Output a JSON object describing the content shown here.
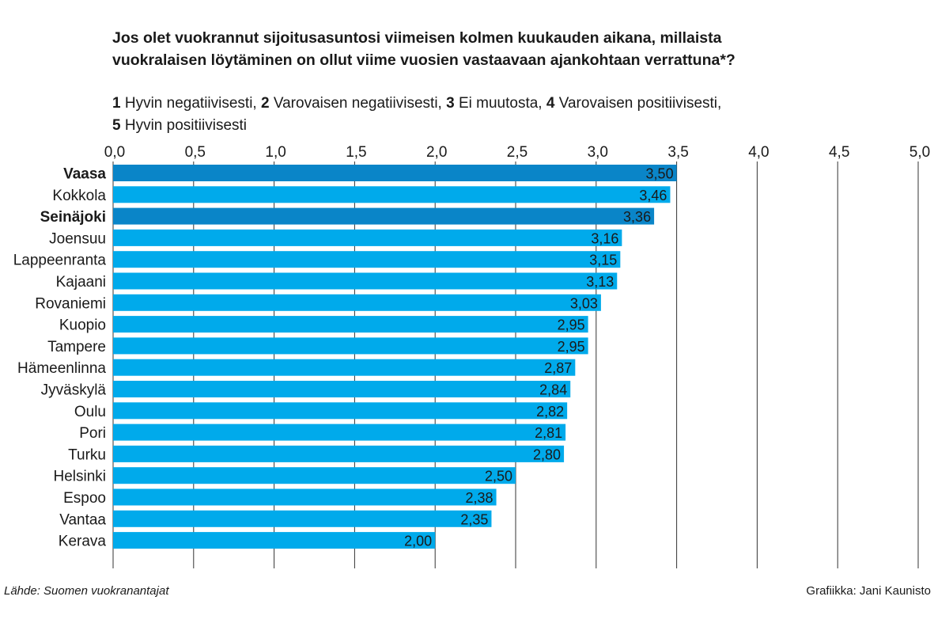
{
  "title_line1": "Jos olet vuokrannut sijoitusasuntosi viimeisen kolmen kuukauden aikana, millaista",
  "title_line2": "vuokralaisen löytäminen on ollut viime vuosien vastaavaan ajankohtaan verrattuna*?",
  "legend": [
    {
      "num": "1",
      "text": " Hyvin negatiivisesti, "
    },
    {
      "num": "2",
      "text": " Varovaisen negatiivisesti, "
    },
    {
      "num": "3",
      "text": " Ei muutosta, "
    },
    {
      "num": "4",
      "text": " Varovaisen positiivisesti,"
    },
    {
      "num": "5",
      "text": " Hyvin positiivisesti"
    }
  ],
  "footer": {
    "source": "Lähde: Suomen vuokranantajat",
    "credit": "Grafiikka: Jani Kaunisto"
  },
  "colors": {
    "highlight": "#0a85c8",
    "normal": "#00aaeb",
    "grid": "#333333",
    "text": "#1a1a1a"
  },
  "chart_data": {
    "type": "bar",
    "orientation": "horizontal",
    "xlim": [
      0,
      5
    ],
    "ticks": [
      0,
      0.5,
      1,
      1.5,
      2,
      2.5,
      3,
      3.5,
      4,
      4.5,
      5
    ],
    "tick_labels": [
      "0,0",
      "0,5",
      "1,0",
      "1,5",
      "2,0",
      "2,5",
      "3,0",
      "3,5",
      "4,0",
      "4,5",
      "5,0"
    ],
    "categories": [
      "Vaasa",
      "Kokkola",
      "Seinäjoki",
      "Joensuu",
      "Lappeenranta",
      "Kajaani",
      "Rovaniemi",
      "Kuopio",
      "Tampere",
      "Hämeenlinna",
      "Jyväskylä",
      "Oulu",
      "Pori",
      "Turku",
      "Helsinki",
      "Espoo",
      "Vantaa",
      "Kerava"
    ],
    "values": [
      3.5,
      3.46,
      3.36,
      3.16,
      3.15,
      3.13,
      3.03,
      2.95,
      2.95,
      2.87,
      2.84,
      2.82,
      2.81,
      2.8,
      2.5,
      2.38,
      2.35,
      2.0
    ],
    "value_labels": [
      "3,50",
      "3,46",
      "3,36",
      "3,16",
      "3,15",
      "3,13",
      "3,03",
      "2,95",
      "2,95",
      "2,87",
      "2,84",
      "2,82",
      "2,81",
      "2,80",
      "2,50",
      "2,38",
      "2,35",
      "2,00"
    ],
    "highlighted": [
      "Vaasa",
      "Seinäjoki"
    ]
  }
}
